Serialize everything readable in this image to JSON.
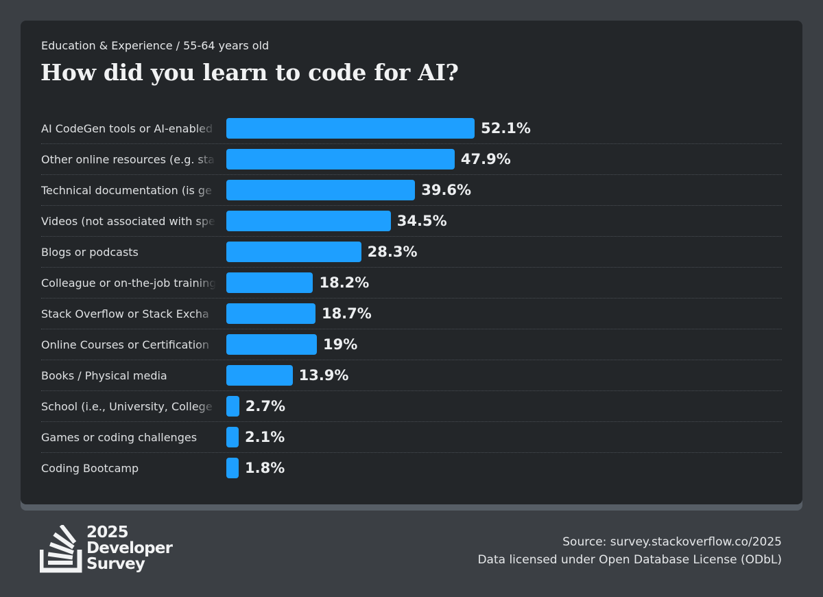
{
  "header": {
    "breadcrumb": "Education & Experience / 55-64 years old",
    "title": "How did you learn to code for AI?"
  },
  "colors": {
    "background": "#3b3f44",
    "card": "#232629",
    "bar": "#1e9fff",
    "text": "#eceef0"
  },
  "chart_data": {
    "type": "bar",
    "orientation": "horizontal",
    "title": "How did you learn to code for AI?",
    "subtitle": "Education & Experience / 55-64 years old",
    "xlabel": "",
    "ylabel": "",
    "xlim": [
      0,
      100
    ],
    "grid": false,
    "legend": "none",
    "unit": "%",
    "categories": [
      "AI CodeGen tools or AI-enabled apps",
      "Other online resources (e.g. standard search, forum, online community)",
      "Technical documentation (is generated for/by the product you are using)",
      "Videos (not associated with specific online course or certification)",
      "Blogs or podcasts",
      "Colleague or on-the-job training",
      "Stack Overflow or Stack Exchange",
      "Online Courses or Certification",
      "Books / Physical media",
      "School (i.e., University, College, etc)",
      "Games or coding challenges",
      "Coding Bootcamp"
    ],
    "display_labels": [
      "AI CodeGen tools or AI-enabled",
      "Other online resources (e.g. sta",
      "Technical documentation (is ge",
      "Videos (not associated with spe",
      "Blogs or podcasts",
      "Colleague or on-the-job training",
      "Stack Overflow or Stack Excha",
      "Online Courses or Certification",
      "Books / Physical media",
      "School (i.e., University, College",
      "Games or coding challenges",
      "Coding Bootcamp"
    ],
    "values": [
      52.1,
      47.9,
      39.6,
      34.5,
      28.3,
      18.2,
      18.7,
      19,
      13.9,
      2.7,
      2.1,
      1.8
    ],
    "value_labels": [
      "52.1%",
      "47.9%",
      "39.6%",
      "34.5%",
      "28.3%",
      "18.2%",
      "18.7%",
      "19%",
      "13.9%",
      "2.7%",
      "2.1%",
      "1.8%"
    ]
  },
  "logo": {
    "line1": "2025",
    "line2": "Developer",
    "line3": "Survey",
    "icon": "stack-overflow-logo-icon"
  },
  "footer": {
    "source": "Source: survey.stackoverflow.co/2025",
    "license": "Data licensed under Open Database License (ODbL)"
  }
}
